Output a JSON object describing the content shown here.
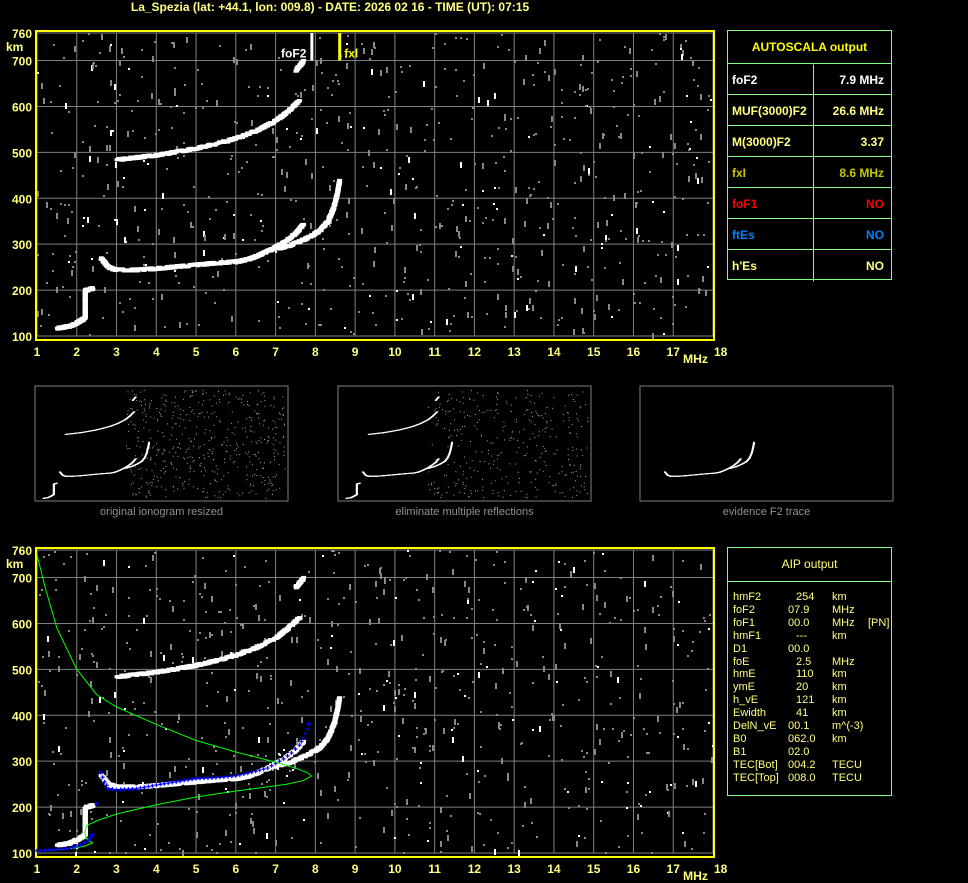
{
  "header": {
    "title": "La_Spezia (lat: +44.1, lon: 009.8) - DATE: 2026 02 16 - TIME (UT): 07:15"
  },
  "colors": {
    "frame": "#ffff00",
    "grid": "#808080",
    "label": "#ffff80",
    "table_border": "#80ff80",
    "profile": "#00ff00",
    "fit": "#0000ff",
    "fof1": "#ff0000",
    "ftes": "#0080ff",
    "fxl": "#c8c800"
  },
  "chart_data": [
    {
      "type": "scatter",
      "name": "ionogram",
      "xlabel": "MHz",
      "ylabel": "km",
      "xlim": [
        1,
        18
      ],
      "ylim": [
        100,
        760
      ],
      "xticks": [
        "1",
        "2",
        "3",
        "4",
        "5",
        "6",
        "7",
        "8",
        "9",
        "10",
        "11",
        "12",
        "13",
        "14",
        "15",
        "16",
        "17",
        "18"
      ],
      "yticks": [
        "100",
        "200",
        "300",
        "400",
        "500",
        "600",
        "700",
        "760"
      ],
      "grid": true,
      "markers": [
        {
          "label": "foF2",
          "x": 7.9
        },
        {
          "label": "fxl",
          "x": 8.6
        }
      ],
      "traces": {
        "o_F": [
          [
            2.6,
            270
          ],
          [
            2.8,
            250
          ],
          [
            3,
            245
          ],
          [
            3.5,
            245
          ],
          [
            4,
            248
          ],
          [
            4.5,
            252
          ],
          [
            5,
            256
          ],
          [
            5.5,
            260
          ],
          [
            6,
            263
          ],
          [
            6.3,
            268
          ],
          [
            6.6,
            278
          ],
          [
            6.9,
            290
          ],
          [
            7.2,
            305
          ],
          [
            7.5,
            325
          ],
          [
            7.7,
            345
          ]
        ],
        "x_F": [
          [
            7.0,
            290
          ],
          [
            7.4,
            300
          ],
          [
            7.8,
            315
          ],
          [
            8.1,
            330
          ],
          [
            8.3,
            350
          ],
          [
            8.45,
            380
          ],
          [
            8.55,
            415
          ],
          [
            8.6,
            440
          ]
        ],
        "second_hop": [
          [
            3.0,
            485
          ],
          [
            3.5,
            490
          ],
          [
            4,
            495
          ],
          [
            4.5,
            502
          ],
          [
            5,
            510
          ],
          [
            5.5,
            520
          ],
          [
            6,
            532
          ],
          [
            6.5,
            548
          ],
          [
            7,
            570
          ],
          [
            7.3,
            590
          ],
          [
            7.6,
            615
          ]
        ],
        "third_hop": [
          [
            7.5,
            680
          ],
          [
            7.7,
            700
          ]
        ],
        "E": [
          [
            1.5,
            118
          ],
          [
            1.8,
            122
          ],
          [
            2.0,
            130
          ],
          [
            2.2,
            140
          ],
          [
            2.2,
            170
          ],
          [
            2.2,
            200
          ],
          [
            2.4,
            205
          ]
        ]
      }
    },
    {
      "type": "line",
      "name": "aip_fit",
      "xlabel": "MHz",
      "ylabel": "km",
      "xlim": [
        1,
        18
      ],
      "ylim": [
        100,
        760
      ],
      "profile": [
        [
          1,
          750
        ],
        [
          1.2,
          680
        ],
        [
          1.5,
          590
        ],
        [
          2,
          500
        ],
        [
          2.5,
          445
        ],
        [
          3,
          418
        ],
        [
          4,
          380
        ],
        [
          5,
          345
        ],
        [
          6,
          320
        ],
        [
          7,
          298
        ],
        [
          7.5,
          285
        ],
        [
          7.8,
          275
        ],
        [
          7.9,
          268
        ],
        [
          7.7,
          258
        ],
        [
          7.3,
          250
        ],
        [
          6,
          235
        ],
        [
          5,
          222
        ],
        [
          4,
          205
        ],
        [
          3,
          185
        ],
        [
          2.5,
          170
        ],
        [
          2.25,
          160
        ],
        [
          2.2,
          145
        ],
        [
          2.25,
          130
        ],
        [
          2.4,
          122
        ],
        [
          2.2,
          115
        ],
        [
          1.9,
          110
        ],
        [
          1.5,
          107
        ],
        [
          1,
          105
        ]
      ],
      "fit": [
        [
          1,
          105
        ],
        [
          1.5,
          108
        ],
        [
          1.8,
          110
        ],
        [
          2.1,
          118
        ],
        [
          2.3,
          128
        ],
        [
          2.4,
          140
        ],
        [
          2.6,
          275
        ],
        [
          2.7,
          255
        ],
        [
          2.8,
          240
        ],
        [
          3,
          238
        ],
        [
          3.5,
          240
        ],
        [
          4,
          248
        ],
        [
          4.5,
          255
        ],
        [
          5,
          262
        ],
        [
          5.5,
          264
        ],
        [
          6,
          268
        ],
        [
          6.5,
          278
        ],
        [
          6.8,
          285
        ],
        [
          7,
          295
        ],
        [
          7.2,
          305
        ],
        [
          7.4,
          318
        ],
        [
          7.6,
          335
        ],
        [
          7.7,
          350
        ],
        [
          7.8,
          370
        ],
        [
          7.85,
          392
        ]
      ]
    }
  ],
  "autoscala": {
    "title": "AUTOSCALA output",
    "rows": [
      {
        "label": "foF2",
        "value": "7.9 MHz",
        "color": "#ffffff"
      },
      {
        "label": "MUF(3000)F2",
        "value": "26.6 MHz",
        "color": "#ffff80"
      },
      {
        "label": "M(3000)F2",
        "value": "3.37",
        "color": "#ffff80"
      },
      {
        "label": "fxI",
        "value": "8.6 MHz",
        "color": "#c8c800"
      },
      {
        "label": "foF1",
        "value": "NO",
        "color": "#ff0000"
      },
      {
        "label": "ftEs",
        "value": "NO",
        "color": "#0080ff"
      },
      {
        "label": "h'Es",
        "value": "NO",
        "color": "#ffff80"
      }
    ]
  },
  "thumbnails": [
    {
      "caption": "original ionogram resized"
    },
    {
      "caption": "eliminate multiple reflections"
    },
    {
      "caption": "evidence F2 trace"
    }
  ],
  "aip": {
    "title": "AIP output",
    "rows": [
      [
        "hmF2",
        "254",
        "km",
        ""
      ],
      [
        "foF2",
        "07.9",
        "MHz",
        ""
      ],
      [
        "foF1",
        "00.0",
        "MHz",
        "[PN]"
      ],
      [
        "hmF1",
        "---",
        "km",
        ""
      ],
      [
        "D1",
        "00.0",
        "",
        ""
      ],
      [
        "foE",
        "2.5",
        "MHz",
        ""
      ],
      [
        "hmE",
        "110",
        "km",
        ""
      ],
      [
        "ymE",
        "20",
        "km",
        ""
      ],
      [
        "h_vE",
        "121",
        "km",
        ""
      ],
      [
        "Ewidth",
        "41",
        "km",
        ""
      ],
      [
        "DelN_vE",
        "00.1",
        "m^(-3)",
        ""
      ],
      [
        "B0",
        "062.0",
        "km",
        ""
      ],
      [
        "B1",
        "02.0",
        "",
        ""
      ],
      [
        "TEC[Bot]",
        "004.2",
        "TECU",
        ""
      ],
      [
        "TEC[Top]",
        "008.0",
        "TECU",
        ""
      ]
    ]
  }
}
